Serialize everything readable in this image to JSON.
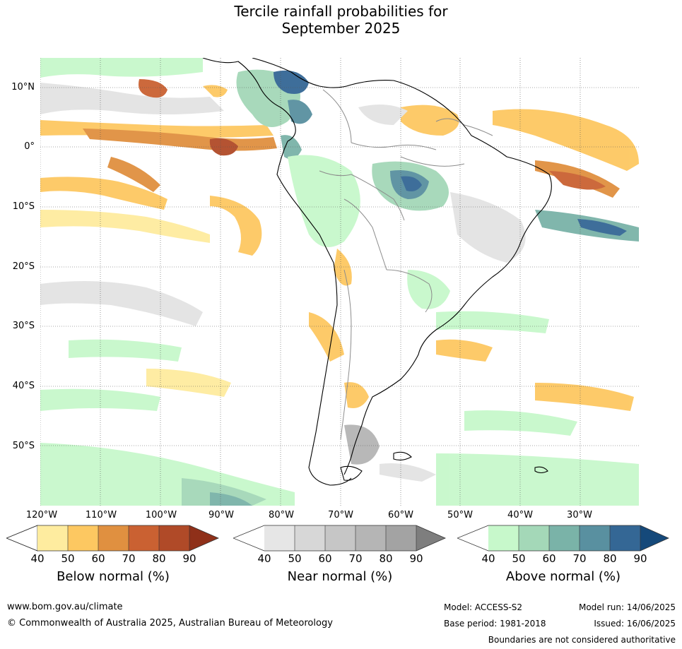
{
  "title": {
    "line1": "Tercile rainfall probabilities for",
    "line2": "September 2025"
  },
  "map": {
    "lat_labels": [
      "10°N",
      "0°",
      "10°S",
      "20°S",
      "30°S",
      "40°S",
      "50°S"
    ],
    "lon_labels": [
      "120°W",
      "110°W",
      "100°W",
      "90°W",
      "80°W",
      "70°W",
      "60°W",
      "50°W",
      "40°W",
      "30°W"
    ],
    "colors": {
      "land_outline": "#000000",
      "borders": "#8c8c8c",
      "gridlines": "#555555"
    }
  },
  "colorbars": [
    {
      "name": "below",
      "title": "Below normal (%)",
      "ticks": [
        "40",
        "50",
        "60",
        "70",
        "80",
        "90"
      ],
      "colors": [
        "#ffffff",
        "#feec9f",
        "#fdc861",
        "#e09040",
        "#ca6132",
        "#b04a28",
        "#8f3019"
      ]
    },
    {
      "name": "near",
      "title": "Near normal (%)",
      "ticks": [
        "40",
        "50",
        "60",
        "70",
        "80",
        "90"
      ],
      "colors": [
        "#ffffff",
        "#e6e6e6",
        "#d7d7d7",
        "#c6c6c6",
        "#b5b5b5",
        "#a3a3a3",
        "#7e7e7e"
      ]
    },
    {
      "name": "above",
      "title": "Above normal (%)",
      "ticks": [
        "40",
        "50",
        "60",
        "70",
        "80",
        "90"
      ],
      "colors": [
        "#ffffff",
        "#c7f8cb",
        "#a4d8b8",
        "#7ab3a8",
        "#5990a0",
        "#346795",
        "#15497a"
      ]
    }
  ],
  "footer": {
    "url": "www.bom.gov.au/climate",
    "copyright": "© Commonwealth of Australia 2025, Australian Bureau of Meteorology",
    "model": "Model: ACCESS-S2",
    "base_period": "Base period: 1981-2018",
    "model_run": "Model run: 14/06/2025",
    "issued": "Issued: 16/06/2025",
    "disclaimer": "Boundaries are not considered authoritative"
  }
}
